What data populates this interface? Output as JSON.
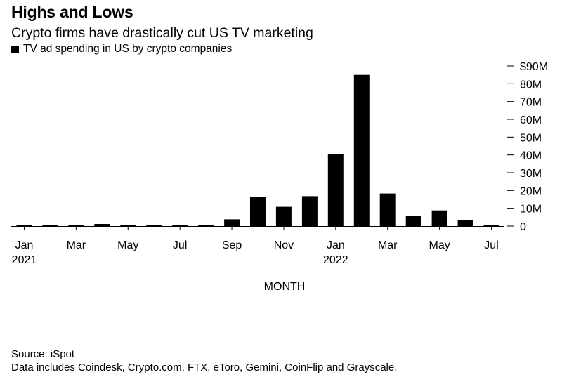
{
  "title": "Highs and Lows",
  "subtitle": "Crypto firms have drastically cut US TV marketing",
  "legend": {
    "label": "TV ad spending in US by crypto companies",
    "color": "#000000"
  },
  "chart_data": {
    "type": "bar",
    "title": "Highs and Lows",
    "subtitle": "Crypto firms have drastically cut US TV marketing",
    "xlabel": "MONTH",
    "ylabel": "",
    "ylim": [
      0,
      90
    ],
    "y_unit": "$M",
    "y_ticks": [
      0,
      10,
      20,
      30,
      40,
      50,
      60,
      70,
      80,
      90
    ],
    "y_tick_labels": [
      "0",
      "10M",
      "20M",
      "30M",
      "40M",
      "50M",
      "60M",
      "70M",
      "80M",
      "$90M"
    ],
    "y_axis_side": "right",
    "grid": false,
    "legend_position": "top-left",
    "categories": [
      "Jan 2021",
      "Feb 2021",
      "Mar 2021",
      "Apr 2021",
      "May 2021",
      "Jun 2021",
      "Jul 2021",
      "Aug 2021",
      "Sep 2021",
      "Oct 2021",
      "Nov 2021",
      "Dec 2021",
      "Jan 2022",
      "Feb 2022",
      "Mar 2022",
      "Apr 2022",
      "May 2022",
      "Jun 2022",
      "Jul 2022"
    ],
    "x_tick_labels": [
      {
        "index": 0,
        "label": "Jan",
        "year": "2021"
      },
      {
        "index": 2,
        "label": "Mar",
        "year": ""
      },
      {
        "index": 4,
        "label": "May",
        "year": ""
      },
      {
        "index": 6,
        "label": "Jul",
        "year": ""
      },
      {
        "index": 8,
        "label": "Sep",
        "year": ""
      },
      {
        "index": 10,
        "label": "Nov",
        "year": ""
      },
      {
        "index": 12,
        "label": "Jan",
        "year": "2022"
      },
      {
        "index": 14,
        "label": "Mar",
        "year": ""
      },
      {
        "index": 16,
        "label": "May",
        "year": ""
      },
      {
        "index": 18,
        "label": "Jul",
        "year": ""
      }
    ],
    "series": [
      {
        "name": "TV ad spending in US by crypto companies",
        "color": "#000000",
        "values": [
          0.3,
          0.3,
          0.3,
          1.2,
          0.5,
          0.5,
          0.3,
          0.5,
          3.8,
          16.5,
          10.8,
          16.8,
          40.5,
          85,
          18.3,
          5.8,
          8.8,
          3.2,
          0.4
        ]
      }
    ]
  },
  "footer": {
    "source": "Source: iSpot",
    "note": "Data includes Coindesk, Crypto.com, FTX, eToro, Gemini, CoinFlip and Grayscale."
  }
}
